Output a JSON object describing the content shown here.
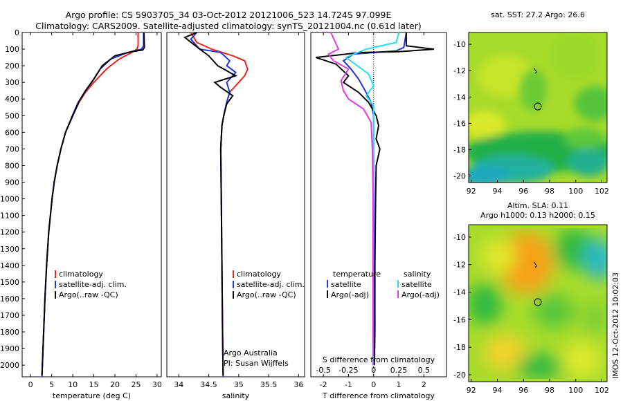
{
  "title_line1": "Argo profile: CS 5903705_34 03-Oct-2012 20121006_523 14.724S 97.099E",
  "title_line2": "Climatology: CARS2009. Satellite-adjusted climatology: synTS_20121004.nc (0.61d later)",
  "colors": {
    "climatology": "#e8231a",
    "satellite": "#2233dd",
    "argo": "#000000",
    "salinity_sat": "#22e0e8",
    "salinity_argo": "#e03ae0"
  },
  "chart_data": [
    {
      "type": "line",
      "xlabel": "temperature (deg C)",
      "ylabel": "",
      "xlim": [
        -2,
        31
      ],
      "ylim": [
        2070,
        0
      ],
      "xticks": [
        0,
        5,
        10,
        15,
        20,
        25,
        30
      ],
      "yticks": [
        0,
        100,
        200,
        300,
        400,
        500,
        600,
        700,
        800,
        900,
        1000,
        1100,
        1200,
        1300,
        1400,
        1500,
        1600,
        1700,
        1800,
        1900,
        2000
      ],
      "legend": [
        "climatology",
        "satellite-adj. clim.",
        "Argo(..raw -QC)"
      ],
      "legend_position": "lower-right",
      "series": [
        {
          "name": "climatology",
          "color_key": "climatology",
          "points": [
            [
              25.5,
              0
            ],
            [
              25.5,
              80
            ],
            [
              25.2,
              100
            ],
            [
              24,
              120
            ],
            [
              21,
              160
            ],
            [
              18,
              220
            ],
            [
              15,
              300
            ],
            [
              13,
              360
            ],
            [
              11.5,
              420
            ],
            [
              10,
              500
            ],
            [
              8.3,
              600
            ],
            [
              7.2,
              700
            ],
            [
              6.3,
              800
            ],
            [
              5.6,
              900
            ],
            [
              5.1,
              1000
            ],
            [
              4.3,
              1200
            ],
            [
              3.8,
              1400
            ],
            [
              3.4,
              1600
            ],
            [
              3.1,
              1800
            ],
            [
              2.8,
              2000
            ],
            [
              2.7,
              2070
            ]
          ]
        },
        {
          "name": "satellite-adj. clim.",
          "color_key": "satellite",
          "points": [
            [
              26.8,
              0
            ],
            [
              26.8,
              80
            ],
            [
              26.3,
              100
            ],
            [
              23,
              120
            ],
            [
              19,
              160
            ],
            [
              16.5,
              220
            ],
            [
              14.5,
              300
            ],
            [
              12.8,
              360
            ],
            [
              11.3,
              420
            ],
            [
              9.9,
              500
            ],
            [
              8.3,
              600
            ],
            [
              7.2,
              700
            ],
            [
              6.3,
              800
            ],
            [
              5.6,
              900
            ],
            [
              5.1,
              1000
            ],
            [
              4.3,
              1200
            ],
            [
              3.8,
              1400
            ],
            [
              3.4,
              1600
            ],
            [
              3.1,
              1800
            ],
            [
              2.8,
              2000
            ],
            [
              2.7,
              2070
            ]
          ]
        },
        {
          "name": "Argo(..raw -QC)",
          "color_key": "argo",
          "points": [
            [
              26.9,
              0
            ],
            [
              27,
              90
            ],
            [
              26.6,
              105
            ],
            [
              24,
              115
            ],
            [
              20,
              140
            ],
            [
              17,
              200
            ],
            [
              15,
              280
            ],
            [
              13,
              350
            ],
            [
              11.4,
              420
            ],
            [
              10,
              500
            ],
            [
              8.3,
              600
            ],
            [
              7.2,
              700
            ],
            [
              6.3,
              800
            ],
            [
              5.6,
              900
            ],
            [
              5.1,
              1000
            ],
            [
              4.3,
              1200
            ],
            [
              3.8,
              1400
            ],
            [
              3.4,
              1600
            ],
            [
              3.1,
              1800
            ],
            [
              2.8,
              2000
            ],
            [
              2.7,
              2060
            ]
          ]
        }
      ]
    },
    {
      "type": "line",
      "xlabel": "salinity",
      "ylabel": "",
      "xlim": [
        33.8,
        36.1
      ],
      "xticks": [
        34,
        34.5,
        35,
        35.5,
        36
      ],
      "legend": [
        "climatology",
        "satellite-adj. clim.",
        "Argo(..raw -QC)"
      ],
      "legend_position": "lower-right",
      "annotation": [
        "Argo Australia",
        "PI: Susan Wijffels"
      ],
      "series": [
        {
          "name": "climatology",
          "color_key": "climatology",
          "points": [
            [
              34.2,
              0
            ],
            [
              34.3,
              60
            ],
            [
              34.55,
              100
            ],
            [
              34.9,
              140
            ],
            [
              35.1,
              170
            ],
            [
              35.15,
              220
            ],
            [
              35.1,
              260
            ],
            [
              34.95,
              320
            ],
            [
              34.85,
              360
            ],
            [
              34.8,
              420
            ],
            [
              34.75,
              500
            ],
            [
              34.72,
              560
            ],
            [
              34.7,
              700
            ],
            [
              34.71,
              1000
            ],
            [
              34.72,
              1400
            ],
            [
              34.73,
              1800
            ],
            [
              34.74,
              2070
            ]
          ]
        },
        {
          "name": "satellite-adj. clim.",
          "color_key": "satellite",
          "points": [
            [
              34.3,
              0
            ],
            [
              34.2,
              40
            ],
            [
              34.35,
              100
            ],
            [
              34.7,
              120
            ],
            [
              34.85,
              170
            ],
            [
              34.8,
              200
            ],
            [
              34.95,
              240
            ],
            [
              34.8,
              300
            ],
            [
              34.85,
              360
            ],
            [
              34.8,
              420
            ],
            [
              34.75,
              500
            ],
            [
              34.72,
              560
            ],
            [
              34.7,
              700
            ],
            [
              34.71,
              1000
            ],
            [
              34.72,
              1400
            ],
            [
              34.73,
              1800
            ],
            [
              34.74,
              2070
            ]
          ]
        },
        {
          "name": "Argo(..raw -QC)",
          "color_key": "argo",
          "points": [
            [
              34.3,
              0
            ],
            [
              34.1,
              30
            ],
            [
              34.35,
              100
            ],
            [
              34.5,
              140
            ],
            [
              34.65,
              200
            ],
            [
              34.75,
              220
            ],
            [
              34.95,
              260
            ],
            [
              34.6,
              300
            ],
            [
              34.7,
              330
            ],
            [
              34.9,
              380
            ],
            [
              34.8,
              430
            ],
            [
              34.75,
              500
            ],
            [
              34.72,
              560
            ],
            [
              34.7,
              700
            ],
            [
              34.71,
              1000
            ],
            [
              34.72,
              1400
            ],
            [
              34.73,
              1800
            ],
            [
              34.74,
              2060
            ]
          ]
        }
      ]
    },
    {
      "type": "line",
      "xlabel": "T difference from climatology",
      "xlabel_top": "S difference from climatology",
      "xlim": [
        -2.5,
        2.9
      ],
      "xticks": [
        -2,
        -1,
        0,
        1,
        2
      ],
      "xticks_salinity": [
        -0.5,
        -0.25,
        0,
        0.25,
        0.5
      ],
      "legend_temperature_title": "temperature",
      "legend_salinity_title": "salinity",
      "legend_temperature": [
        "satellite",
        "Argo(-adj)"
      ],
      "legend_salinity": [
        "satellite",
        "Argo(-adj)"
      ],
      "zero_line": true,
      "series": [
        {
          "name": "temperature satellite",
          "color_key": "satellite",
          "points": [
            [
              1.3,
              0
            ],
            [
              1.2,
              90
            ],
            [
              0.9,
              110
            ],
            [
              -0.8,
              130
            ],
            [
              -1.2,
              170
            ],
            [
              -0.9,
              220
            ],
            [
              -0.6,
              280
            ],
            [
              -0.3,
              360
            ],
            [
              -0.1,
              420
            ],
            [
              0,
              500
            ],
            [
              0,
              600
            ],
            [
              0,
              800
            ],
            [
              0,
              1200
            ],
            [
              0,
              1600
            ],
            [
              0,
              2000
            ]
          ]
        },
        {
          "name": "temperature Argo(-adj)",
          "color_key": "argo",
          "points": [
            [
              1.3,
              0
            ],
            [
              1.3,
              80
            ],
            [
              2.4,
              100
            ],
            [
              1.0,
              115
            ],
            [
              -0.5,
              120
            ],
            [
              -2.3,
              150
            ],
            [
              -1.5,
              190
            ],
            [
              -1.0,
              260
            ],
            [
              -1.2,
              300
            ],
            [
              -0.6,
              360
            ],
            [
              -0.2,
              420
            ],
            [
              0.1,
              500
            ],
            [
              0.2,
              560
            ],
            [
              0.1,
              640
            ],
            [
              0.25,
              700
            ],
            [
              0.1,
              800
            ],
            [
              0.08,
              1000
            ],
            [
              0.05,
              1400
            ],
            [
              0.05,
              1800
            ],
            [
              0.03,
              2000
            ]
          ]
        },
        {
          "name": "salinity satellite",
          "color_key": "salinity_sat",
          "points": [
            [
              1.0,
              0
            ],
            [
              0.9,
              60
            ],
            [
              -0.3,
              100
            ],
            [
              -1.1,
              150
            ],
            [
              -0.2,
              250
            ],
            [
              0,
              320
            ],
            [
              -0.3,
              380
            ],
            [
              0,
              440
            ],
            [
              0,
              600
            ],
            [
              -0.02,
              1000
            ],
            [
              -0.02,
              1400
            ],
            [
              -0.02,
              2000
            ]
          ]
        },
        {
          "name": "salinity Argo(-adj)",
          "color_key": "salinity_argo",
          "points": [
            [
              -1.7,
              0
            ],
            [
              -1.4,
              100
            ],
            [
              -1.8,
              130
            ],
            [
              -1.6,
              170
            ],
            [
              -1.0,
              220
            ],
            [
              -1.3,
              290
            ],
            [
              -1.2,
              350
            ],
            [
              -1.0,
              400
            ],
            [
              -0.4,
              460
            ],
            [
              -0.1,
              540
            ],
            [
              -0.05,
              700
            ],
            [
              -0.02,
              1000
            ],
            [
              -0.03,
              1400
            ],
            [
              -0.02,
              1800
            ],
            [
              -0.01,
              2000
            ]
          ]
        }
      ]
    }
  ],
  "map_top": {
    "title": "sat. SST: 27.2 Argo: 26.6",
    "xticks": [
      92,
      94,
      96,
      98,
      100,
      102
    ],
    "yticks": [
      -10,
      -12,
      -14,
      -16,
      -18,
      -20
    ]
  },
  "map_bottom": {
    "title_line1": "Altim. SLA: 0.11",
    "title_line2": "Argo h1000: 0.13 h2000: 0.15",
    "xticks": [
      92,
      94,
      96,
      98,
      100,
      102
    ],
    "yticks": [
      -10,
      -12,
      -14,
      -16,
      -18,
      -20
    ]
  },
  "side_stamp": "IMOS 12-Oct-2012 10:02:03"
}
